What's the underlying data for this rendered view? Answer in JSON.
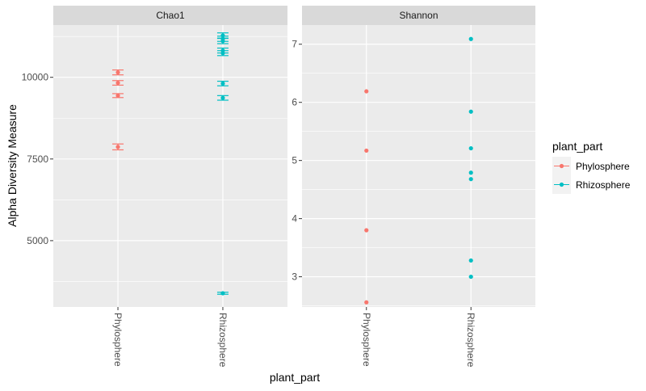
{
  "chart_data": {
    "type": "scatter",
    "xlabel": "plant_part",
    "ylabel": "Alpha Diversity Measure",
    "categories": [
      "Phylosphere",
      "Rhizosphere"
    ],
    "legend": {
      "title": "plant_part",
      "position": "right",
      "entries": [
        {
          "label": "Phylosphere",
          "color": "#F8766D"
        },
        {
          "label": "Rhizosphere",
          "color": "#00BFC4"
        }
      ]
    },
    "panels": [
      {
        "title": "Chao1",
        "ylim": [
          2970,
          11600
        ],
        "yticks": [
          5000,
          7500,
          10000
        ],
        "yticklabels": [
          "5000",
          "7500",
          "10000"
        ],
        "error_bars": true,
        "series": [
          {
            "category": "Phylosphere",
            "points": [
              {
                "y": 10150,
                "err": 75
              },
              {
                "y": 9830,
                "err": 70
              },
              {
                "y": 9440,
                "err": 60
              },
              {
                "y": 7870,
                "err": 90
              }
            ]
          },
          {
            "category": "Rhizosphere",
            "points": [
              {
                "y": 11280,
                "err": 80
              },
              {
                "y": 11180,
                "err": 80
              },
              {
                "y": 11110,
                "err": 80
              },
              {
                "y": 10820,
                "err": 75
              },
              {
                "y": 10740,
                "err": 75
              },
              {
                "y": 9810,
                "err": 70
              },
              {
                "y": 9370,
                "err": 70
              },
              {
                "y": 3390,
                "err": 30
              }
            ]
          }
        ]
      },
      {
        "title": "Shannon",
        "ylim": [
          2.48,
          7.33
        ],
        "yticks": [
          3,
          4,
          5,
          6,
          7
        ],
        "yticklabels": [
          "3",
          "4",
          "5",
          "6",
          "7"
        ],
        "error_bars": false,
        "series": [
          {
            "category": "Phylosphere",
            "points": [
              {
                "y": 6.19
              },
              {
                "y": 5.17
              },
              {
                "y": 3.8
              },
              {
                "y": 2.56
              }
            ]
          },
          {
            "category": "Rhizosphere",
            "points": [
              {
                "y": 7.09
              },
              {
                "y": 5.84
              },
              {
                "y": 5.21
              },
              {
                "y": 4.79
              },
              {
                "y": 4.68
              },
              {
                "y": 3.28
              },
              {
                "y": 3.0
              }
            ]
          }
        ]
      }
    ],
    "grid": true
  }
}
